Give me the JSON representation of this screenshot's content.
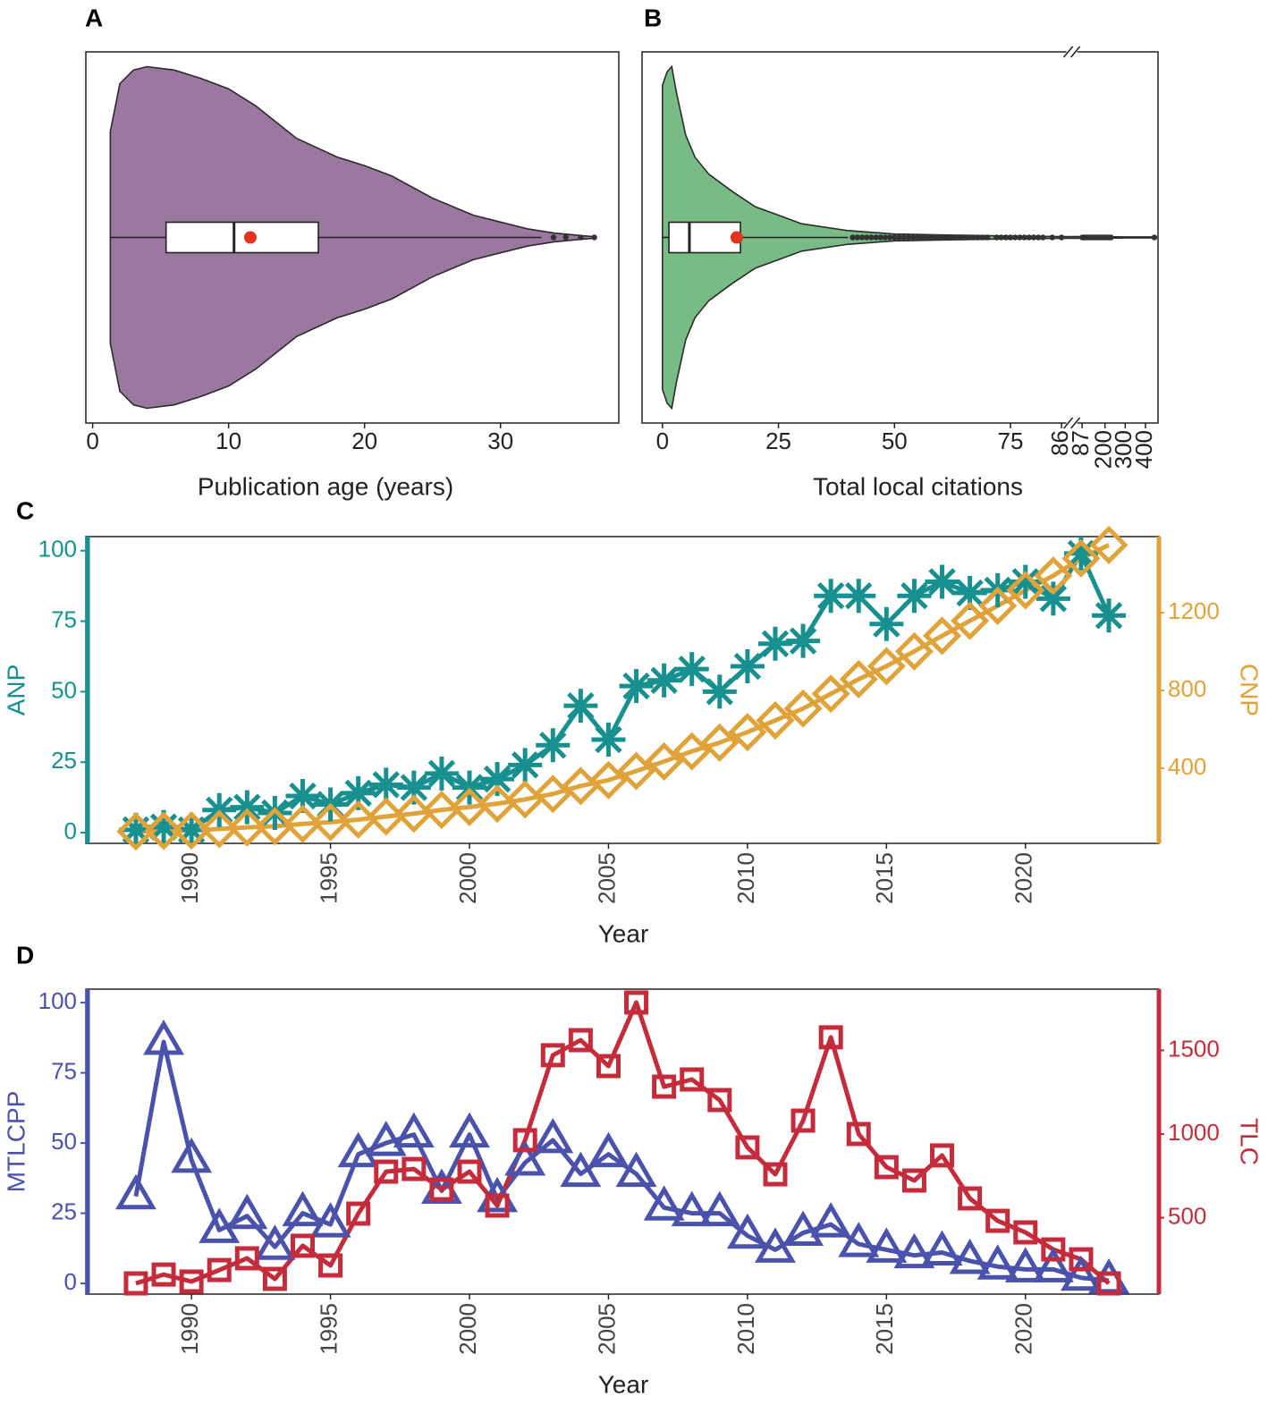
{
  "chart_data": [
    {
      "type": "violin",
      "label": "A",
      "xlabel": "Publication age (years)",
      "color": "#9a78a0",
      "xlim": [
        -0.5,
        38.7
      ],
      "xticks": [
        0,
        10,
        20,
        30
      ],
      "violin": {
        "x": [
          1.3,
          2,
          3,
          4,
          6,
          8,
          10,
          12,
          15,
          18,
          20,
          22,
          25,
          28,
          30,
          32,
          34,
          35,
          36,
          37
        ],
        "width": [
          0.62,
          0.9,
          0.98,
          1.0,
          0.98,
          0.93,
          0.87,
          0.77,
          0.58,
          0.47,
          0.42,
          0.36,
          0.23,
          0.13,
          0.09,
          0.05,
          0.025,
          0.018,
          0.01,
          0.004
        ]
      },
      "box": {
        "whisker_low": 1.3,
        "q1": 5.4,
        "median": 10.4,
        "q3": 16.6,
        "whisker_high": 33
      },
      "mean": 11.6,
      "outliers": [
        33.9,
        34.8,
        35.9,
        36.9
      ]
    },
    {
      "type": "violin",
      "label": "B",
      "xlabel": "Total local citations",
      "color": "#78bb85",
      "xlim": [
        -4.4,
        462
      ],
      "xbreak": [
        86,
        87
      ],
      "xticks": [
        0,
        25,
        50,
        75,
        86,
        87,
        200,
        300,
        400
      ],
      "violin": {
        "x": [
          0,
          1,
          2,
          3,
          5,
          7,
          10,
          15,
          20,
          25,
          30,
          40,
          50,
          60,
          75,
          86,
          87,
          200,
          300,
          444
        ],
        "width": [
          0.89,
          0.97,
          1.0,
          0.85,
          0.6,
          0.47,
          0.37,
          0.27,
          0.18,
          0.13,
          0.08,
          0.04,
          0.02,
          0.015,
          0.008,
          0.005,
          0.005,
          0.004,
          0.003,
          0.003
        ]
      },
      "box": {
        "whisker_low": 0,
        "q1": 1.4,
        "median": 5.8,
        "q3": 16.8,
        "whisker_high": 40
      },
      "mean": 16,
      "outliers": [
        41,
        42,
        43,
        44,
        45,
        46,
        47,
        48,
        49,
        50,
        51,
        52,
        53,
        54,
        55,
        56,
        57,
        58,
        59,
        60,
        61,
        62,
        63,
        64,
        65,
        66,
        67,
        68,
        69,
        70,
        72,
        73,
        74,
        75,
        76,
        77,
        78,
        79,
        80,
        81,
        82,
        84,
        86,
        88,
        95,
        100,
        110,
        120,
        130,
        140,
        150,
        160,
        170,
        180,
        190,
        200,
        210,
        220,
        230,
        444
      ]
    },
    {
      "type": "line",
      "label": "C",
      "xlabel": "Year",
      "ylabel": "ANP",
      "y2label": "CNP",
      "x": [
        1988,
        1989,
        1990,
        1991,
        1992,
        1993,
        1994,
        1995,
        1996,
        1997,
        1998,
        1999,
        2000,
        2001,
        2002,
        2003,
        2004,
        2005,
        2006,
        2007,
        2008,
        2009,
        2010,
        2011,
        2012,
        2013,
        2014,
        2015,
        2016,
        2017,
        2018,
        2019,
        2020,
        2021,
        2022,
        2023
      ],
      "xlim": [
        1986.2,
        2024.8
      ],
      "xticks": [
        1990,
        1995,
        2000,
        2005,
        2010,
        2015,
        2020
      ],
      "ylim": [
        -3.8,
        105
      ],
      "yticks": [
        0,
        25,
        50,
        75,
        100
      ],
      "y2lim": [
        14,
        1591
      ],
      "y2ticks": [
        400,
        800,
        1200
      ],
      "series": [
        {
          "color": "#17908f",
          "marker": "asterisk",
          "axis": "y",
          "values": [
            1,
            2,
            1,
            8,
            9,
            7,
            13,
            10,
            14,
            17,
            16,
            21,
            16,
            19,
            24,
            31,
            45,
            33,
            52,
            54,
            58,
            50,
            59,
            67,
            68,
            84,
            84,
            74,
            84,
            89,
            85,
            86,
            89,
            83,
            99,
            77
          ]
        },
        {
          "color": "#e0a33a",
          "marker": "diamond",
          "axis": "y2",
          "values": [
            75,
            78,
            80,
            88,
            96,
            102,
            114,
            123,
            136,
            152,
            167,
            186,
            201,
            218,
            240,
            268,
            309,
            339,
            386,
            435,
            487,
            532,
            586,
            646,
            707,
            783,
            858,
            925,
            1001,
            1081,
            1158,
            1235,
            1315,
            1390,
            1479,
            1548
          ]
        }
      ]
    },
    {
      "type": "line",
      "label": "D",
      "xlabel": "Year",
      "ylabel": "MTLCPP",
      "y2label": "TLC",
      "x": [
        1988,
        1989,
        1990,
        1991,
        1992,
        1993,
        1994,
        1995,
        1996,
        1997,
        1998,
        1999,
        2000,
        2001,
        2002,
        2003,
        2004,
        2005,
        2006,
        2007,
        2008,
        2009,
        2010,
        2011,
        2012,
        2013,
        2014,
        2015,
        2016,
        2017,
        2018,
        2019,
        2020,
        2021,
        2022,
        2023
      ],
      "xlim": [
        1986.2,
        2024.8
      ],
      "xticks": [
        1990,
        1995,
        2000,
        2005,
        2010,
        2015,
        2020
      ],
      "ylim": [
        -3.8,
        104.8
      ],
      "yticks": [
        0,
        25,
        50,
        75,
        100
      ],
      "y2lim": [
        43,
        1866
      ],
      "y2ticks": [
        500,
        1000,
        1500
      ],
      "series": [
        {
          "color": "#4a52ab",
          "marker": "triangle",
          "axis": "y",
          "values": [
            31,
            86,
            44,
            19,
            24,
            13,
            25,
            21,
            46,
            50,
            53,
            33,
            53,
            30,
            43,
            51,
            39,
            46,
            39,
            27,
            25,
            25,
            17,
            12,
            18,
            21,
            14,
            12,
            10,
            11,
            8,
            6,
            5,
            5,
            2,
            1
          ]
        },
        {
          "color": "#c42c3c",
          "marker": "square",
          "axis": "y2",
          "values": [
            107,
            160,
            118,
            187,
            257,
            134,
            332,
            214,
            524,
            775,
            791,
            668,
            775,
            572,
            963,
            1471,
            1561,
            1406,
            1786,
            1283,
            1326,
            1203,
            920,
            759,
            1080,
            1578,
            1000,
            802,
            722,
            872,
            615,
            481,
            412,
            310,
            251,
            107
          ]
        }
      ]
    }
  ]
}
